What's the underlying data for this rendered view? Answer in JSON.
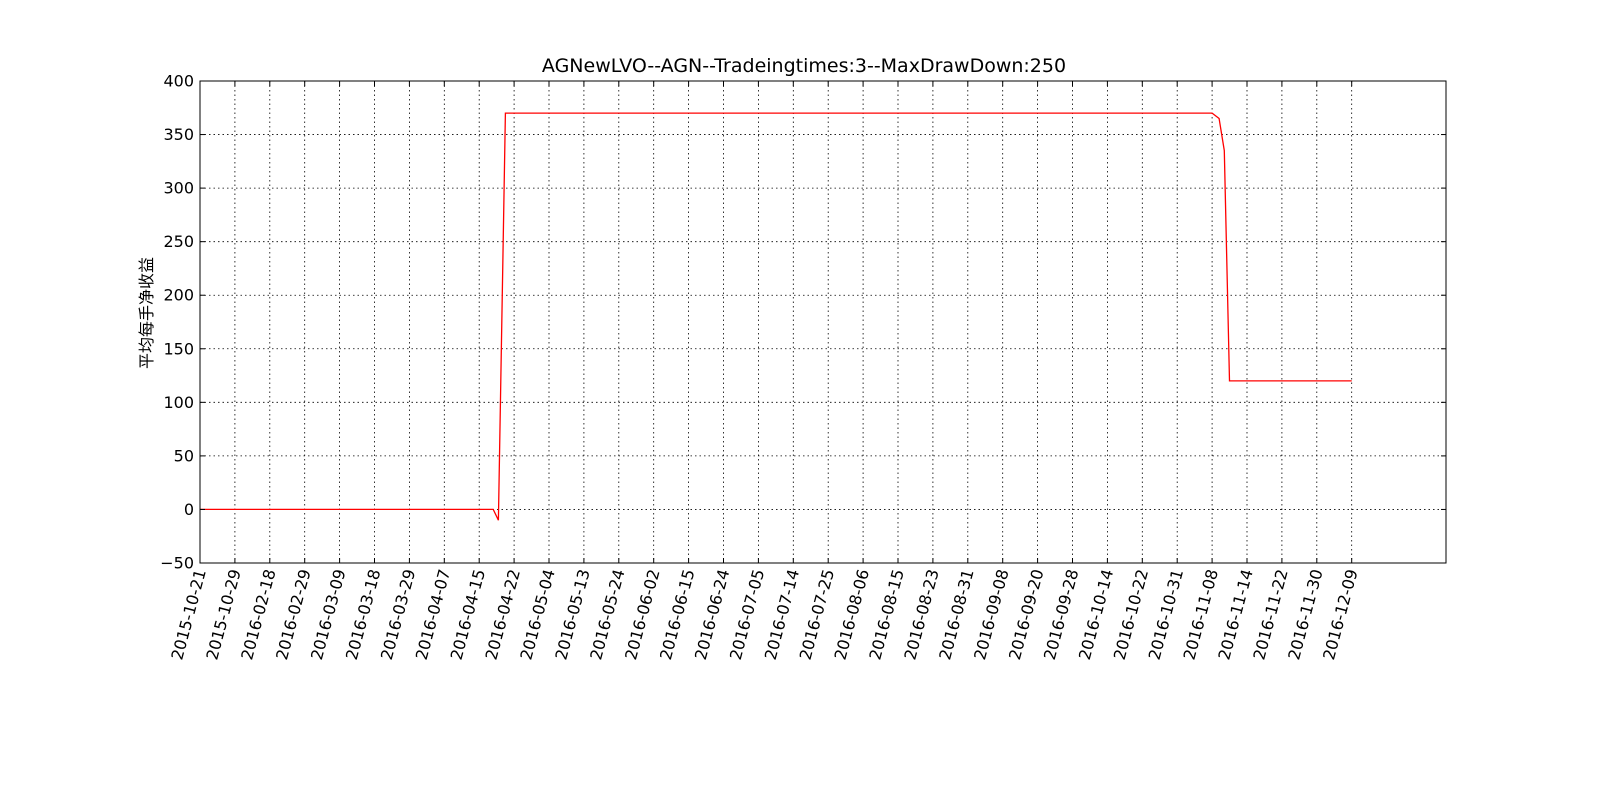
{
  "chart_data": {
    "type": "line",
    "title": "AGNewLVO--AGN--Tradeingtimes:3--MaxDrawDown:250",
    "xlabel": "",
    "ylabel": "平均每手净收益",
    "ylim": [
      -50,
      400
    ],
    "yticks": [
      "400",
      "350",
      "300",
      "250",
      "200",
      "150",
      "100",
      "50",
      "0",
      "−50"
    ],
    "ytick_values": [
      400,
      350,
      300,
      250,
      200,
      150,
      100,
      50,
      0,
      -50
    ],
    "xticks": [
      "2015-10-21",
      "2015-10-29",
      "2016-02-18",
      "2016-02-29",
      "2016-03-09",
      "2016-03-18",
      "2016-03-29",
      "2016-04-07",
      "2016-04-15",
      "2016-04-22",
      "2016-05-04",
      "2016-05-13",
      "2016-05-24",
      "2016-06-02",
      "2016-06-15",
      "2016-06-24",
      "2016-07-05",
      "2016-07-14",
      "2016-07-25",
      "2016-08-06",
      "2016-08-15",
      "2016-08-23",
      "2016-08-31",
      "2016-09-08",
      "2016-09-20",
      "2016-09-28",
      "2016-10-14",
      "2016-10-22",
      "2016-10-31",
      "2016-11-08",
      "2016-11-14",
      "2016-11-22",
      "2016-11-30",
      "2016-12-09"
    ],
    "grid": true,
    "series": [
      {
        "color": "#ff0000",
        "x": [
          0,
          8.4,
          8.55,
          8.75,
          29.0,
          29.2,
          29.35,
          29.5,
          33.0
        ],
        "y": [
          0,
          0,
          -10,
          370,
          370,
          365,
          335,
          120,
          120
        ]
      }
    ]
  }
}
